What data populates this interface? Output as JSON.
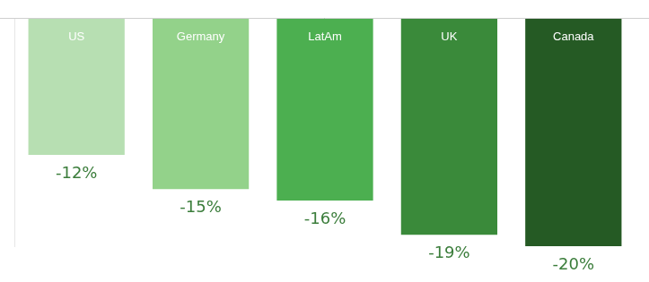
{
  "chart_data": {
    "type": "bar",
    "categories": [
      "US",
      "Germany",
      "LatAm",
      "UK",
      "Canada"
    ],
    "values": [
      -12,
      -15,
      -16,
      -19,
      -20
    ],
    "value_labels": [
      "-12%",
      "-15%",
      "-16%",
      "-19%",
      "-20%"
    ],
    "colors": [
      "#b7dfb2",
      "#93d28a",
      "#4caf50",
      "#3a8a3a",
      "#255a24"
    ],
    "ylim": [
      -20,
      0
    ],
    "tick_labels": false,
    "data_labels": true,
    "grid": false
  }
}
